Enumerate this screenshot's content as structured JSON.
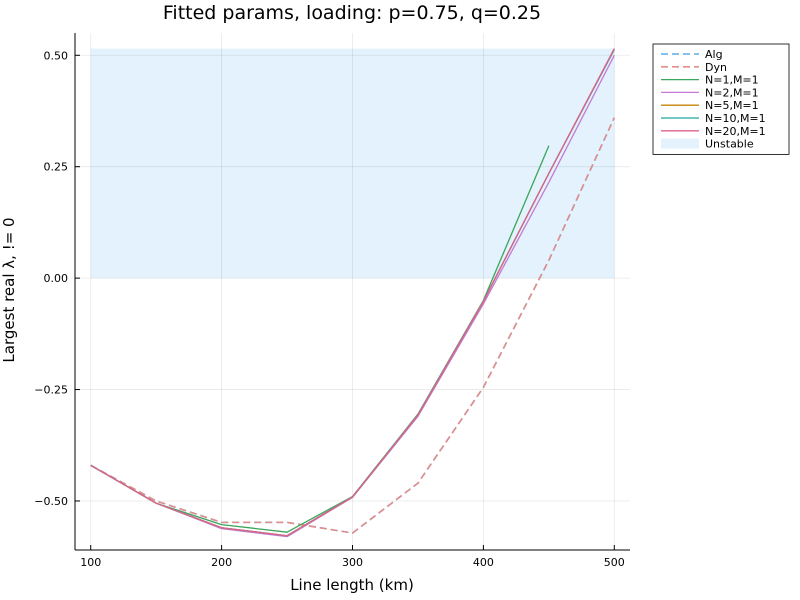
{
  "chart_data": {
    "type": "line",
    "title": "Fitted params, loading: p=0.75, q=0.25",
    "xlabel": "Line length (km)",
    "ylabel": "Largest real λ, != 0",
    "xlim": [
      88,
      512
    ],
    "ylim": [
      -0.61,
      0.55
    ],
    "xticks": [
      100,
      200,
      300,
      400,
      500
    ],
    "yticks": [
      -0.5,
      -0.25,
      0.0,
      0.25,
      0.5
    ],
    "xtick_labels": [
      "100",
      "200",
      "300",
      "400",
      "500"
    ],
    "ytick_labels": [
      "−0.50",
      "−0.25",
      "0.00",
      "0.25",
      "0.50"
    ],
    "grid": true,
    "legend_position": "top-right, outside plot",
    "unstable_region": {
      "name": "Unstable",
      "x": [
        100,
        500
      ],
      "y": [
        0.0,
        0.515
      ],
      "color": "#e3f2fd"
    },
    "series": [
      {
        "name": "Alg",
        "style": "dashed",
        "color": "#5aaee8",
        "x": [
          100,
          150,
          200,
          250,
          300,
          350,
          400,
          450,
          500
        ],
        "y": [
          -0.42,
          -0.5,
          -0.548,
          -0.548,
          -0.572,
          -0.46,
          -0.245,
          0.04,
          0.36
        ]
      },
      {
        "name": "Dyn",
        "style": "dashed",
        "color": "#e48d8a",
        "x": [
          100,
          150,
          200,
          250,
          300,
          350,
          400,
          450,
          500
        ],
        "y": [
          -0.42,
          -0.5,
          -0.548,
          -0.548,
          -0.572,
          -0.46,
          -0.245,
          0.04,
          0.36
        ]
      },
      {
        "name": "N=1,M=1",
        "style": "solid",
        "color": "#3ba55c",
        "x": [
          100,
          150,
          200,
          250,
          300,
          350,
          400,
          450
        ],
        "y": [
          -0.42,
          -0.505,
          -0.553,
          -0.57,
          -0.49,
          -0.305,
          -0.05,
          0.297
        ]
      },
      {
        "name": "N=2,M=1",
        "style": "solid",
        "color": "#c37ad6",
        "x": [
          100,
          150,
          200,
          250,
          300,
          350,
          400,
          450,
          500
        ],
        "y": [
          -0.42,
          -0.505,
          -0.562,
          -0.58,
          -0.492,
          -0.31,
          -0.058,
          0.215,
          0.5
        ]
      },
      {
        "name": "N=5,M=1",
        "style": "solid",
        "color": "#c9860a",
        "x": [
          100,
          150,
          200,
          250,
          300,
          350,
          400,
          450,
          500
        ],
        "y": [
          -0.42,
          -0.505,
          -0.56,
          -0.578,
          -0.491,
          -0.307,
          -0.052,
          0.235,
          0.513
        ]
      },
      {
        "name": "N=10,M=1",
        "style": "solid",
        "color": "#1fa7a0",
        "x": [
          100,
          150,
          200,
          250,
          300,
          350,
          400,
          450,
          500
        ],
        "y": [
          -0.42,
          -0.505,
          -0.56,
          -0.578,
          -0.491,
          -0.307,
          -0.052,
          0.235,
          0.513
        ]
      },
      {
        "name": "N=20,M=1",
        "style": "solid",
        "color": "#e0628a",
        "x": [
          100,
          150,
          200,
          250,
          300,
          350,
          400,
          450,
          500
        ],
        "y": [
          -0.42,
          -0.505,
          -0.56,
          -0.578,
          -0.491,
          -0.307,
          -0.052,
          0.235,
          0.515
        ]
      }
    ]
  }
}
